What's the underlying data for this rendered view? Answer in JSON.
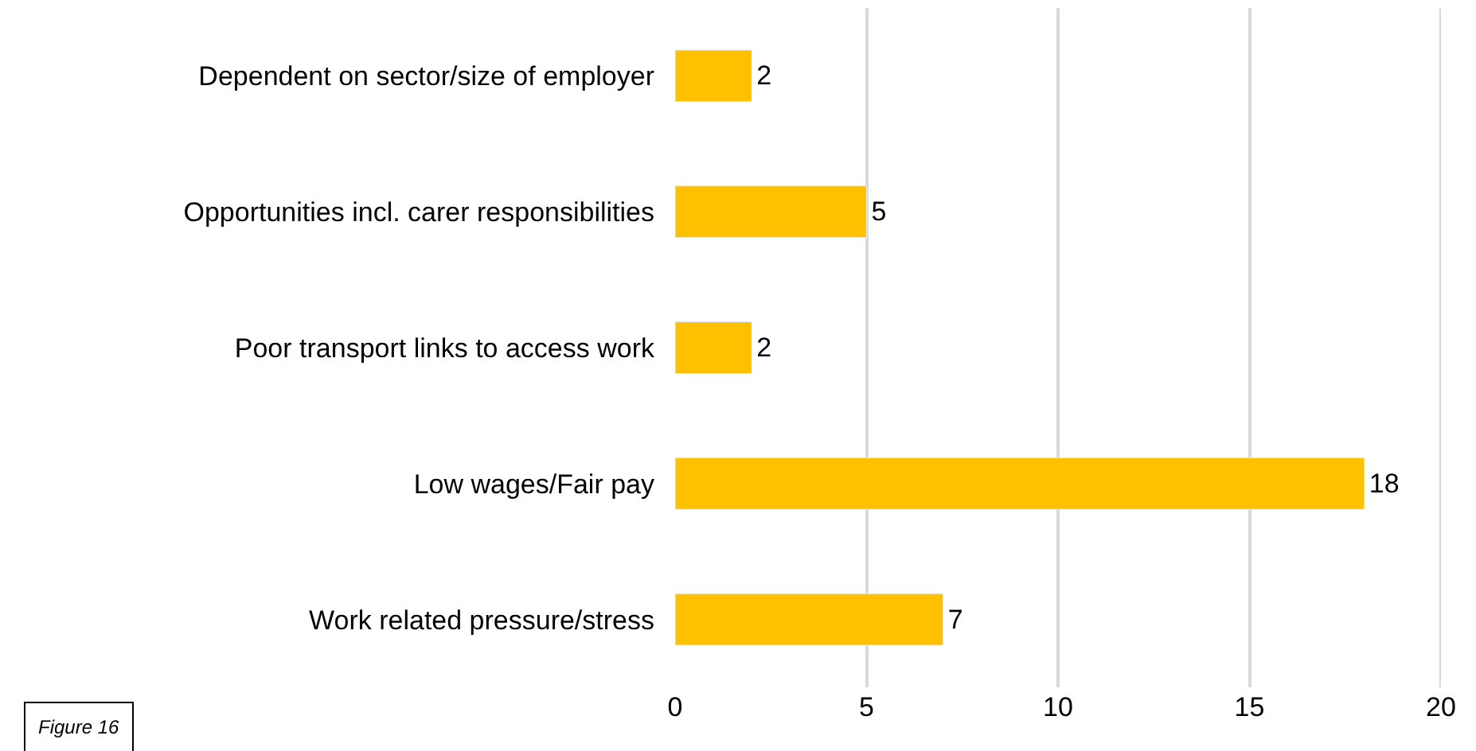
{
  "chart_data": {
    "type": "bar",
    "orientation": "horizontal",
    "categories": [
      "Dependent on sector/size of employer",
      "Opportunities incl. carer responsibilities",
      "Poor transport links to access work",
      "Low wages/Fair pay",
      "Work related pressure/stress"
    ],
    "values": [
      2,
      5,
      2,
      18,
      7
    ],
    "color": "#ffc000",
    "xlim": [
      0,
      20
    ],
    "xticks": [
      0,
      5,
      10,
      15,
      20
    ],
    "grid": "x",
    "data_labels": true,
    "annotations": [
      "Figure 16"
    ]
  }
}
